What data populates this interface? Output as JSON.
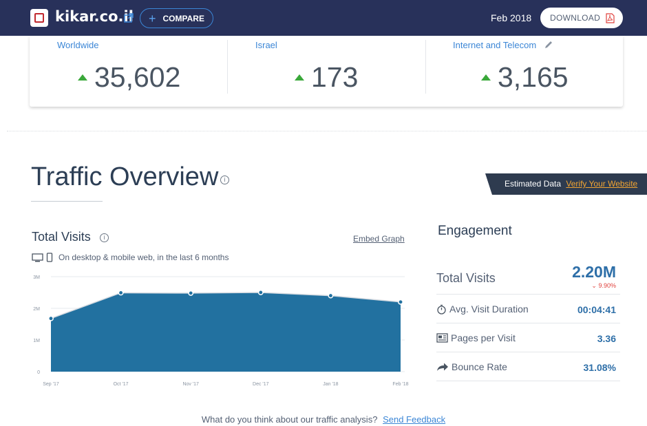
{
  "header": {
    "site_name": "kikar.co.il",
    "compare_label": "COMPARE",
    "date": "Feb 2018",
    "download_label": "DOWNLOAD",
    "colors": {
      "bar": "#28315a",
      "accent": "#3b86d6"
    }
  },
  "ranks": [
    {
      "label": "Worldwide",
      "value": "35,602",
      "trend": "up"
    },
    {
      "label": "Israel",
      "value": "173",
      "trend": "up"
    },
    {
      "label": "Internet and Telecom",
      "value": "3,165",
      "trend": "up"
    }
  ],
  "overview": {
    "title": "Traffic Overview",
    "estimated_label": "Estimated Data",
    "verify_label": "Verify Your Website"
  },
  "total_visits": {
    "title": "Total Visits",
    "embed_label": "Embed Graph",
    "device_note": "On desktop & mobile web, in the last 6 months"
  },
  "chart_data": {
    "type": "area",
    "title": "Total Visits",
    "x": [
      "Sep '17",
      "Oct '17",
      "Nov '17",
      "Dec '17",
      "Jan '18",
      "Feb '18"
    ],
    "y_ticks": [
      "0",
      "1M",
      "2M",
      "3M"
    ],
    "ylim": [
      0,
      3000000
    ],
    "series": [
      {
        "values": [
          1680000,
          2490000,
          2480000,
          2500000,
          2400000,
          2200000
        ],
        "color": "#2271a0"
      }
    ],
    "grid": true
  },
  "engagement": {
    "title": "Engagement",
    "total_visits_label": "Total Visits",
    "total_visits_value": "2.20M",
    "total_visits_change": "9.90%",
    "rows": [
      {
        "icon": "stopwatch-icon",
        "label": "Avg. Visit Duration",
        "value": "00:04:41"
      },
      {
        "icon": "pages-icon",
        "label": "Pages per Visit",
        "value": "3.36"
      },
      {
        "icon": "bounce-arrow-icon",
        "label": "Bounce Rate",
        "value": "31.08%"
      }
    ]
  },
  "feedback": {
    "question": "What do you think about our traffic analysis?",
    "link": "Send Feedback"
  }
}
